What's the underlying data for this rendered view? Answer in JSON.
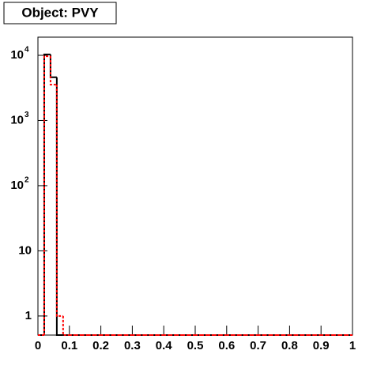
{
  "chart_data": {
    "type": "histogram",
    "title": "Object: PVY",
    "bins": [
      0,
      0.02,
      0.04,
      0.06,
      0.08,
      0.1,
      0.12,
      0.14,
      0.16,
      0.18,
      0.2,
      0.22,
      0.24,
      0.26,
      0.28,
      0.3,
      0.32,
      0.34,
      0.36,
      0.38,
      0.4,
      0.42,
      0.44,
      0.46,
      0.48,
      0.5,
      0.52,
      0.54,
      0.56,
      0.58,
      0.6,
      0.62,
      0.64,
      0.66,
      0.68,
      0.7,
      0.72,
      0.74,
      0.76,
      0.78,
      0.8,
      0.82,
      0.84,
      0.86,
      0.88,
      0.9,
      0.92,
      0.94,
      0.96,
      0.98,
      1
    ],
    "series": [
      {
        "color": "#000000",
        "dash": false,
        "values": [
          0,
          10300,
          4600,
          0,
          0,
          0,
          0,
          0,
          0,
          0,
          0,
          0,
          0,
          0,
          0,
          0,
          0,
          0,
          0,
          0,
          0,
          0,
          0,
          0,
          0,
          0,
          0,
          0,
          0,
          0,
          0,
          0,
          0,
          0,
          0,
          0,
          0,
          0,
          0,
          0,
          0,
          0,
          0,
          0,
          0,
          0,
          0,
          0,
          0,
          0
        ]
      },
      {
        "color": "#ff0000",
        "dash": true,
        "values": [
          0,
          9700,
          3550,
          1,
          0,
          0,
          0,
          0,
          0,
          0,
          0,
          0,
          0,
          0,
          0,
          0,
          0,
          0,
          0,
          0,
          0,
          0,
          0,
          0,
          0,
          0,
          0,
          0,
          0,
          0,
          0,
          0,
          0,
          0,
          0,
          0,
          0,
          0,
          0,
          0,
          0,
          0,
          0,
          0,
          0,
          0,
          0,
          0,
          0,
          0
        ]
      }
    ],
    "xlim": [
      0,
      1
    ],
    "xticks": [
      0,
      0.1,
      0.2,
      0.3,
      0.4,
      0.5,
      0.6,
      0.7,
      0.8,
      0.9,
      1
    ],
    "ylim": [
      0.51,
      19000
    ],
    "log_y": true,
    "yticks": [
      1,
      10,
      {
        "value": 100,
        "label": "10",
        "exponent": "2"
      },
      {
        "value": 1000,
        "label": "10",
        "exponent": "3"
      },
      {
        "value": 10000,
        "label": "10",
        "exponent": "4"
      }
    ]
  }
}
